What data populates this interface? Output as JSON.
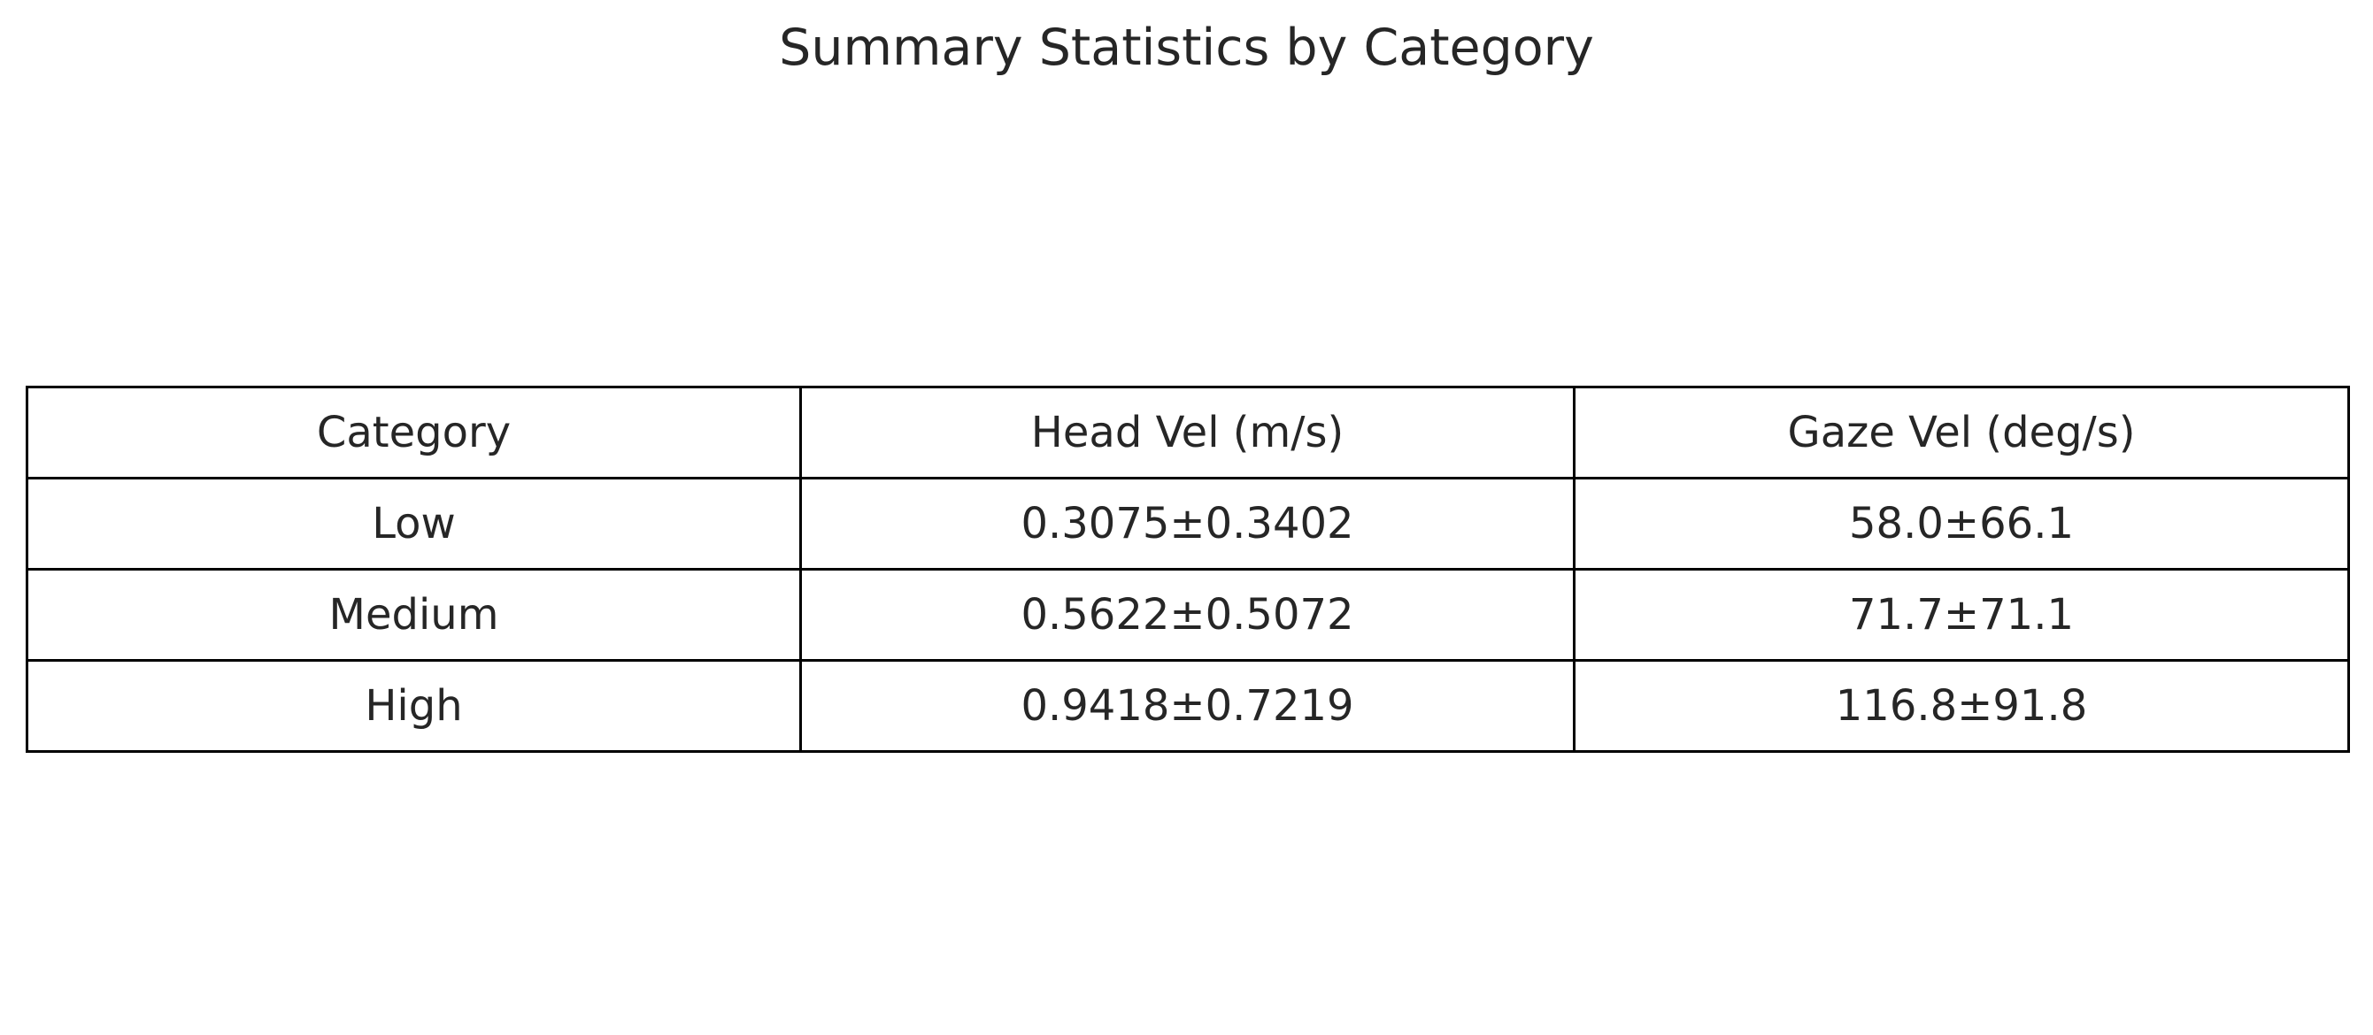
{
  "chart_data": {
    "type": "table",
    "title": "Summary Statistics by Category",
    "columns": [
      "Category",
      "Head Vel (m/s)",
      "Gaze Vel (deg/s)"
    ],
    "rows": [
      [
        "Low",
        "0.3075±0.3402",
        "58.0±66.1"
      ],
      [
        "Medium",
        "0.5622±0.5072",
        "71.7±71.1"
      ],
      [
        "High",
        "0.9418±0.7219",
        "116.8±91.8"
      ]
    ]
  }
}
